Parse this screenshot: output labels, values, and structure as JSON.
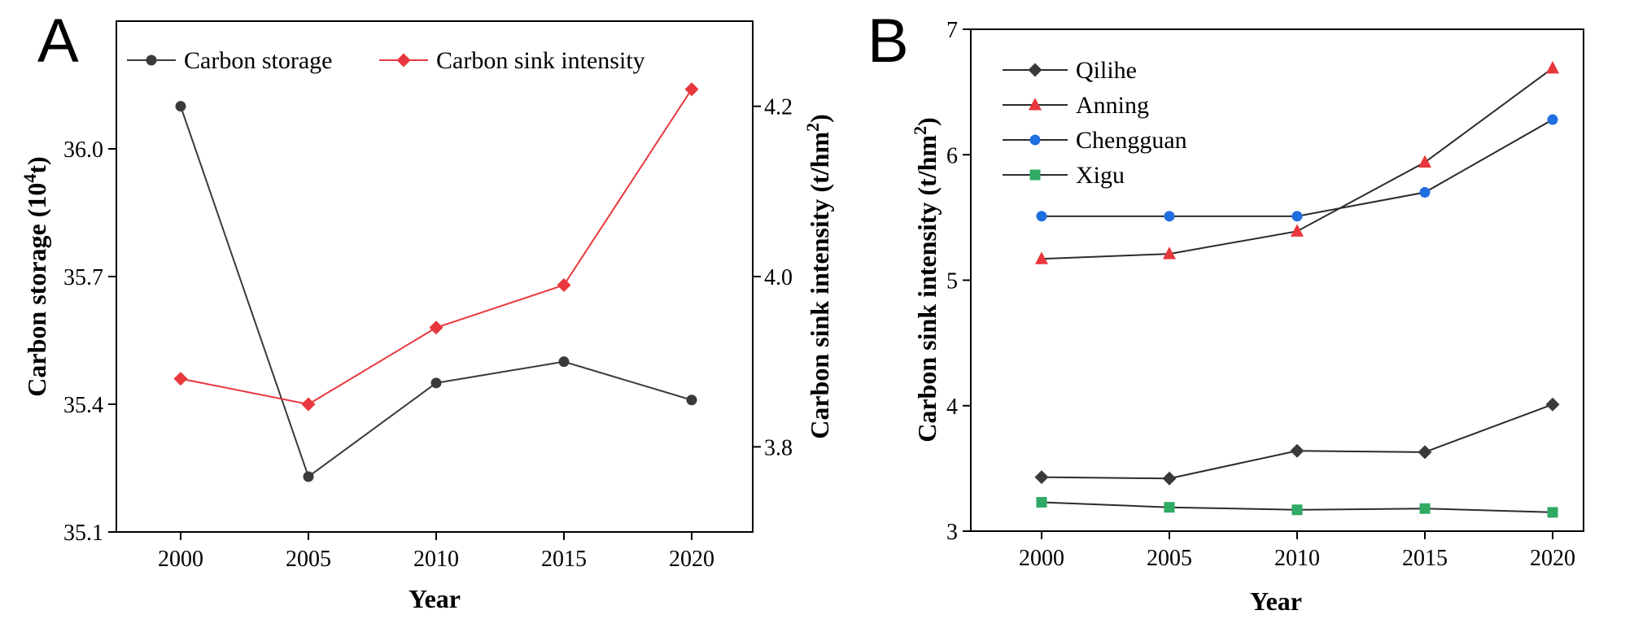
{
  "chart_data": [
    {
      "panel": "A",
      "type": "line",
      "categories": [
        "2000",
        "2005",
        "2010",
        "2015",
        "2020"
      ],
      "xlabel": "Year",
      "ylabel": "Carbon storage (10",
      "ylabel_sup": "4",
      "ylabel_tail": "t)",
      "y2label": "Carbon sink intensity (t/hm",
      "y2label_sup": "2",
      "y2label_tail": ")",
      "ylim": [
        35.1,
        36.3
      ],
      "yticks": [
        "35.1",
        "35.4",
        "35.7",
        "36.0"
      ],
      "y2lim": [
        3.7,
        4.3
      ],
      "y2ticks": [
        "3.8",
        "4.0",
        "4.2"
      ],
      "legend_position": "top",
      "series": [
        {
          "name": "Carbon storage",
          "axis": "left",
          "color": "#3a3a3a",
          "marker": "circle",
          "values": [
            36.1,
            35.23,
            35.45,
            35.5,
            35.41
          ]
        },
        {
          "name": "Carbon sink intensity",
          "axis": "right",
          "color": "#e8383d",
          "marker": "diamond",
          "values": [
            3.88,
            3.85,
            3.94,
            3.99,
            4.22
          ]
        }
      ]
    },
    {
      "panel": "B",
      "type": "line",
      "categories": [
        "2000",
        "2005",
        "2010",
        "2015",
        "2020"
      ],
      "xlabel": "Year",
      "ylabel": "Carbon sink intensity (t/hm",
      "ylabel_sup": "2",
      "ylabel_tail": ")",
      "ylim": [
        3,
        7
      ],
      "yticks": [
        "3",
        "4",
        "5",
        "6",
        "7"
      ],
      "legend_position": "top-left",
      "series": [
        {
          "name": "Qilihe",
          "color": "#3a3a3a",
          "marker": "diamond",
          "values": [
            3.43,
            3.42,
            3.64,
            3.63,
            4.01
          ]
        },
        {
          "name": "Anning",
          "color": "#e8383d",
          "marker": "triangle",
          "values": [
            5.17,
            5.21,
            5.39,
            5.94,
            6.69
          ]
        },
        {
          "name": "Chengguan",
          "color": "#1f6fe0",
          "marker": "circle",
          "values": [
            5.51,
            5.51,
            5.51,
            5.7,
            6.28
          ]
        },
        {
          "name": "Xigu",
          "color": "#2eaa63",
          "marker": "square",
          "values": [
            3.23,
            3.19,
            3.17,
            3.18,
            3.15
          ]
        }
      ]
    }
  ]
}
